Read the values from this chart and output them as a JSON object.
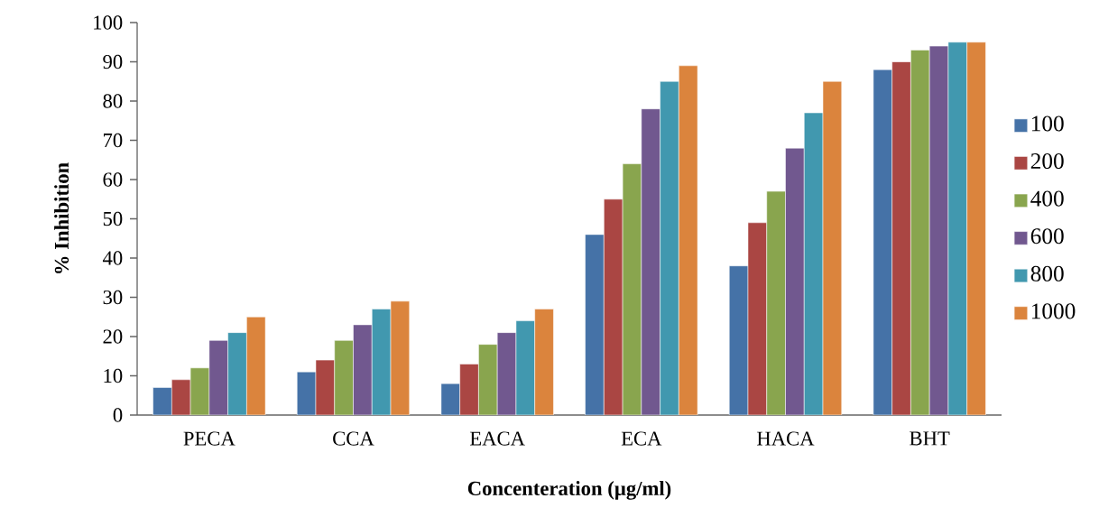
{
  "chart_data": {
    "type": "bar",
    "xlabel": "Concenteration (µg/ml)",
    "ylabel": "% Inhibition",
    "categories": [
      "PECA",
      "CCA",
      "EACA",
      "ECA",
      "HACA",
      "BHT"
    ],
    "series": [
      {
        "name": "100",
        "color": "#4572a7",
        "values": [
          7,
          11,
          8,
          46,
          38,
          88
        ]
      },
      {
        "name": "200",
        "color": "#aa4643",
        "values": [
          9,
          14,
          13,
          55,
          49,
          90
        ]
      },
      {
        "name": "400",
        "color": "#89a54e",
        "values": [
          12,
          19,
          18,
          64,
          57,
          93
        ]
      },
      {
        "name": "600",
        "color": "#71588f",
        "values": [
          19,
          23,
          21,
          78,
          68,
          94
        ]
      },
      {
        "name": "800",
        "color": "#4198af",
        "values": [
          21,
          27,
          24,
          85,
          77,
          95
        ]
      },
      {
        "name": "1000",
        "color": "#db843d",
        "values": [
          25,
          29,
          27,
          89,
          85,
          95
        ]
      }
    ],
    "ylim": [
      0,
      100
    ],
    "yticks": [
      0,
      10,
      20,
      30,
      40,
      50,
      60,
      70,
      80,
      90,
      100
    ],
    "legend": "right",
    "grid": false
  }
}
